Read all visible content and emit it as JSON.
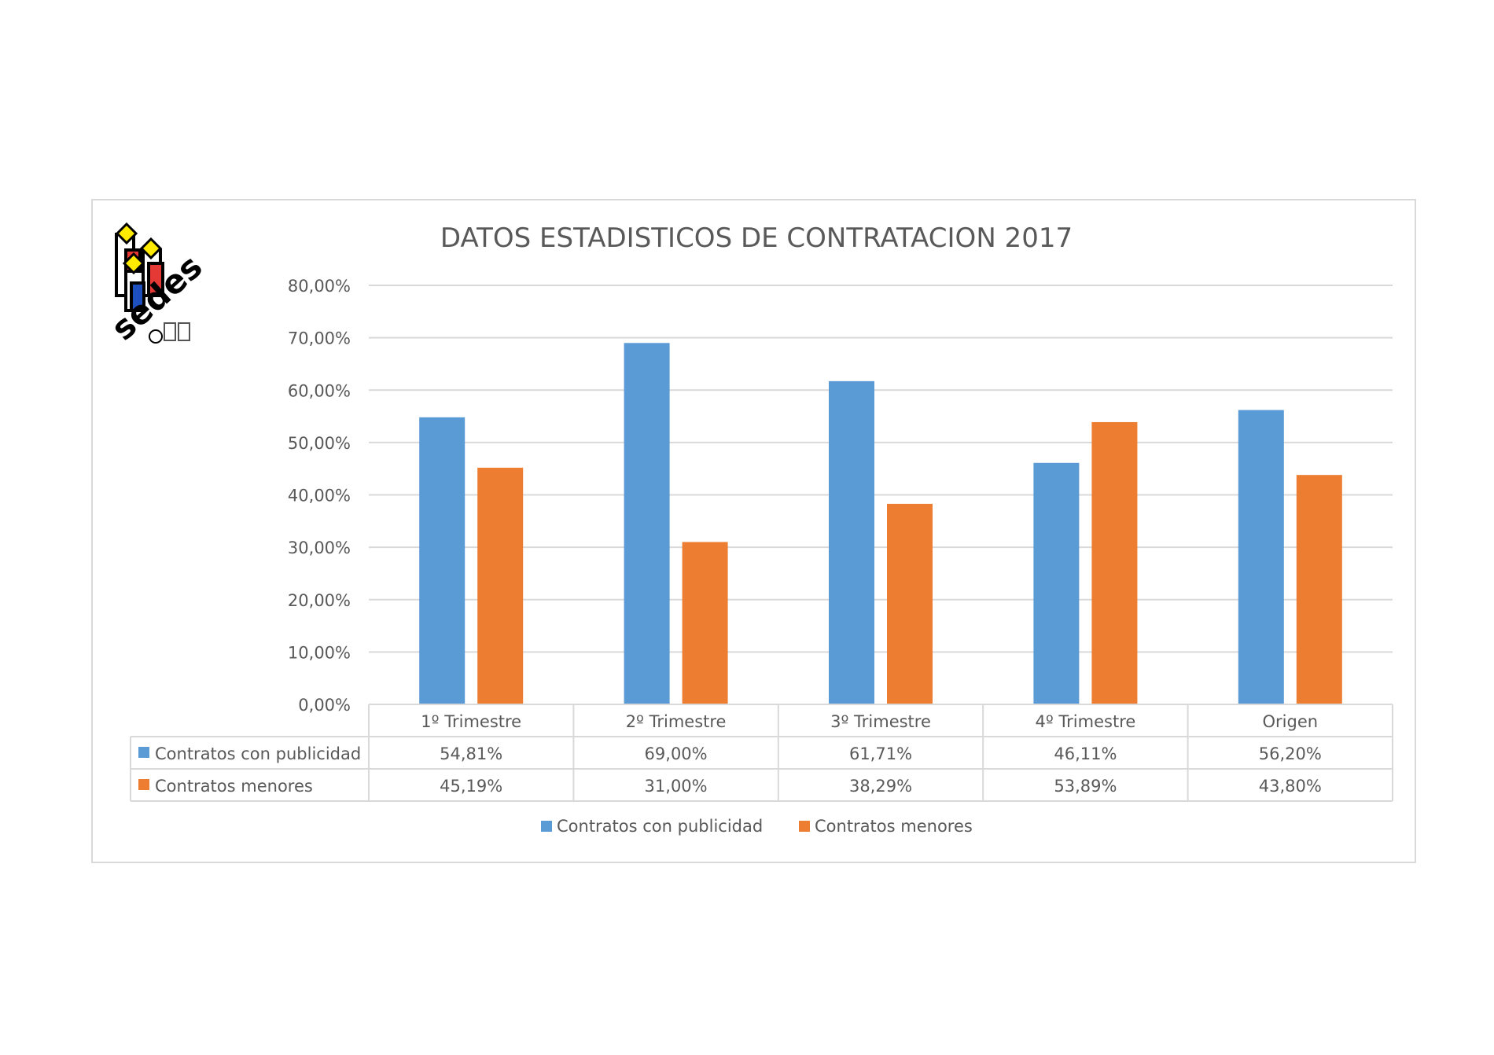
{
  "chart_data": {
    "type": "bar",
    "title": "DATOS ESTADISTICOS DE CONTRATACION 2017",
    "categories": [
      "1º Trimestre",
      "2º Trimestre",
      "3º Trimestre",
      "4º Trimestre",
      "Origen"
    ],
    "series": [
      {
        "name": "Contratos con publicidad",
        "color": "#5b9bd5",
        "values": [
          54.81,
          69.0,
          61.71,
          46.11,
          56.2
        ],
        "labels": [
          "54,81%",
          "69,00%",
          "61,71%",
          "46,11%",
          "56,20%"
        ]
      },
      {
        "name": "Contratos menores",
        "color": "#ed7d31",
        "values": [
          45.19,
          31.0,
          38.29,
          53.89,
          43.8
        ],
        "labels": [
          "45,19%",
          "31,00%",
          "38,29%",
          "53,89%",
          "43,80%"
        ]
      }
    ],
    "yticks": [
      "0,00%",
      "10,00%",
      "20,00%",
      "30,00%",
      "40,00%",
      "50,00%",
      "60,00%",
      "70,00%",
      "80,00%"
    ],
    "ylim": [
      0,
      80
    ],
    "grid": true,
    "legend_position": "bottom",
    "data_table": true
  },
  "logo": {
    "name": "sedes-logo",
    "text": "sedes"
  }
}
